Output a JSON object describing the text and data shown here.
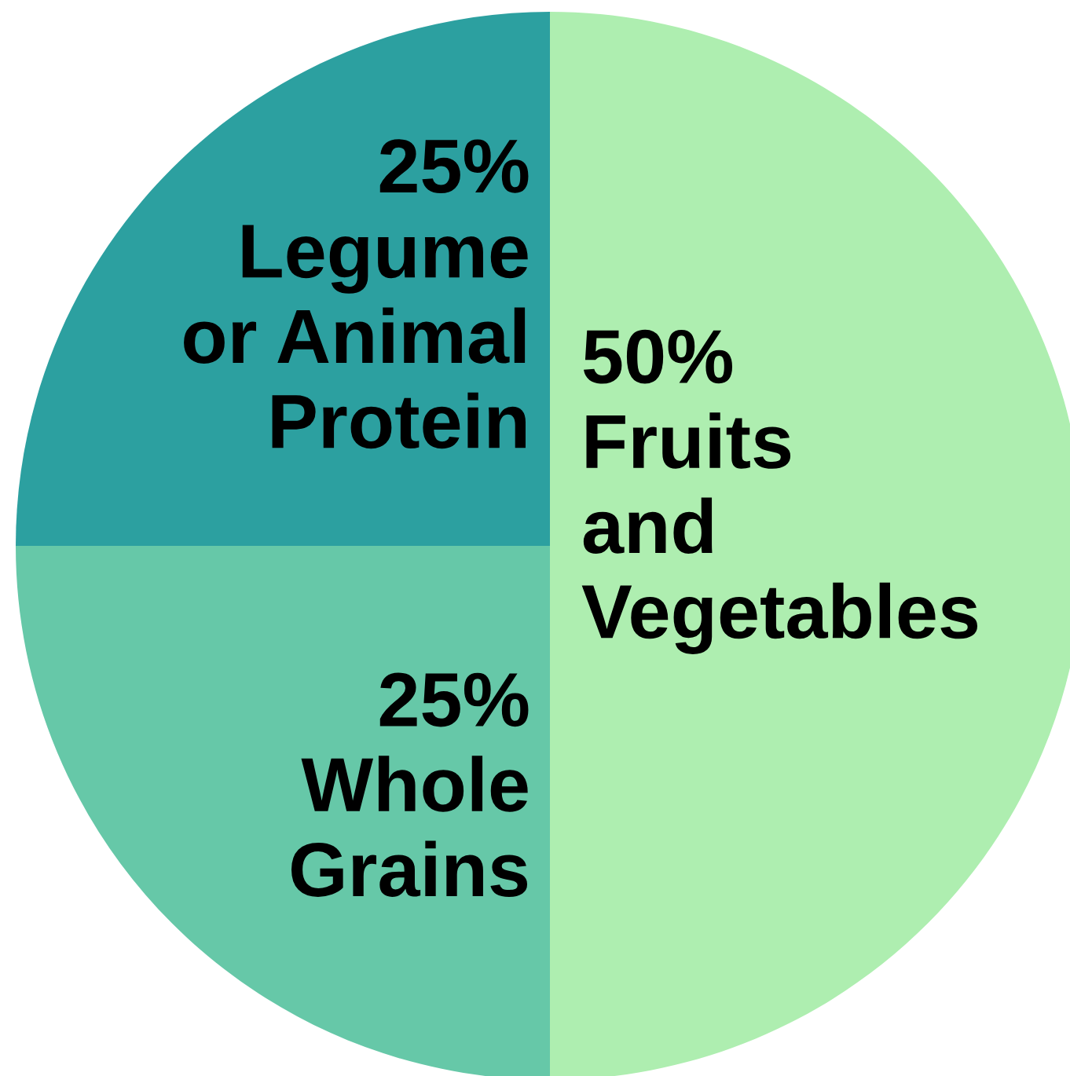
{
  "chart_data": {
    "type": "pie",
    "categories": [
      "Fruits\nand\nVegetables",
      "Whole\nGrains",
      "Legume\nor Animal\nProtein"
    ],
    "values": [
      50,
      25,
      25
    ],
    "colors": [
      "#aeeeb0",
      "#66c8a8",
      "#2ca0a0"
    ],
    "value_labels": [
      "50%",
      "25%",
      "25%"
    ]
  }
}
